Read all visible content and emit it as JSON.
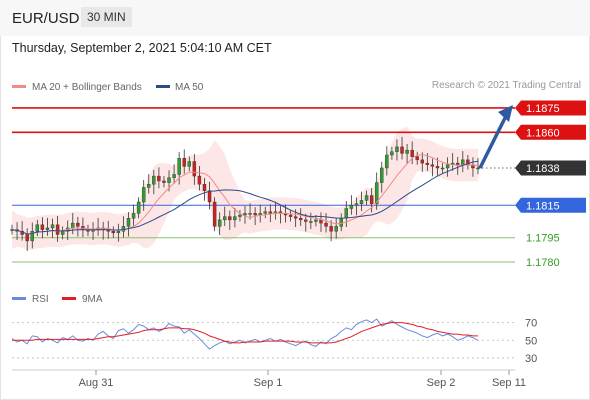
{
  "header": {
    "pair": "EUR/USD",
    "timeframe": "30 MIN"
  },
  "datetime": "Thursday, September 2, 2021 5:04:10 AM CET",
  "credit": "Research © 2021 Trading Central",
  "colors": {
    "resistance": "#dd1111",
    "support_blue": "#3366dd",
    "support_green": "#88c070",
    "last_price": "#333333",
    "ma20": "#f28a8a",
    "ma50": "#2d4a8a",
    "bands": "#fde3e3",
    "candle_up": "#2f9e2f",
    "candle_down": "#cc2222",
    "arrow": "#2d5aa0",
    "rsi": "#6a8ae0",
    "rsi_ma": "#e02020"
  },
  "chart_data": [
    {
      "type": "candlestick",
      "legend": [
        {
          "label": "MA 20 + Bollinger Bands",
          "color": "#f28a8a"
        },
        {
          "label": "MA 50",
          "color": "#2d4a8a"
        }
      ],
      "ylim": [
        1.1772,
        1.1883
      ],
      "x_ticks": [
        "Aug 31",
        "Sep 1",
        "Sep 2",
        "Sep 11"
      ],
      "levels": [
        {
          "label": "1.1875",
          "value": 1.1875,
          "kind": "resistance"
        },
        {
          "label": "1.1860",
          "value": 1.186,
          "kind": "resistance"
        },
        {
          "label": "1.1838",
          "value": 1.1838,
          "kind": "last"
        },
        {
          "label": "1.1815",
          "value": 1.1815,
          "kind": "support_blue"
        },
        {
          "label": "1.1795",
          "value": 1.1795,
          "kind": "support_green"
        },
        {
          "label": "1.1780",
          "value": 1.178,
          "kind": "support_green"
        }
      ],
      "closes": [
        1.18,
        1.1799,
        1.1797,
        1.1793,
        1.1799,
        1.1803,
        1.18,
        1.1801,
        1.1803,
        1.1797,
        1.1799,
        1.1801,
        1.1804,
        1.1802,
        1.18,
        1.1799,
        1.18,
        1.1801,
        1.18,
        1.1799,
        1.1798,
        1.1799,
        1.1802,
        1.1807,
        1.181,
        1.1817,
        1.1826,
        1.1828,
        1.1833,
        1.183,
        1.1829,
        1.1832,
        1.1834,
        1.1844,
        1.1839,
        1.1842,
        1.1833,
        1.1828,
        1.1824,
        1.1817,
        1.1802,
        1.1806,
        1.1808,
        1.1806,
        1.1808,
        1.1809,
        1.181,
        1.181,
        1.1809,
        1.181,
        1.1811,
        1.181,
        1.1811,
        1.181,
        1.1809,
        1.1808,
        1.1807,
        1.1806,
        1.1805,
        1.1805,
        1.1806,
        1.1804,
        1.1802,
        1.1799,
        1.1802,
        1.1807,
        1.1813,
        1.1815,
        1.1816,
        1.1818,
        1.1821,
        1.1816,
        1.1829,
        1.1838,
        1.1846,
        1.1848,
        1.1851,
        1.1847,
        1.1849,
        1.1845,
        1.1843,
        1.1841,
        1.184,
        1.1839,
        1.1838,
        1.1838,
        1.184,
        1.1841,
        1.184,
        1.1843,
        1.184,
        1.1838,
        1.1838
      ],
      "arrow_target": 1.1875
    },
    {
      "type": "line",
      "legend": [
        {
          "label": "RSI",
          "color": "#6a8ae0"
        },
        {
          "label": "9MA",
          "color": "#e02020"
        }
      ],
      "y_ticks": [
        "70",
        "50",
        "30"
      ],
      "ylim": [
        22,
        82
      ],
      "series": [
        {
          "name": "RSI",
          "values": [
            52,
            48,
            50,
            46,
            55,
            54,
            48,
            52,
            50,
            47,
            53,
            51,
            55,
            50,
            49,
            52,
            50,
            57,
            60,
            55,
            52,
            61,
            63,
            58,
            62,
            68,
            66,
            62,
            64,
            60,
            63,
            69,
            66,
            65,
            58,
            62,
            57,
            52,
            46,
            40,
            44,
            47,
            49,
            46,
            48,
            50,
            47,
            49,
            51,
            48,
            50,
            52,
            49,
            51,
            48,
            46,
            44,
            47,
            49,
            45,
            43,
            48,
            46,
            52,
            55,
            60,
            64,
            62,
            68,
            71,
            73,
            70,
            74,
            66,
            69,
            72,
            68,
            65,
            62,
            60,
            58,
            55,
            53,
            56,
            58,
            55,
            57,
            54,
            50,
            52,
            55,
            53,
            50
          ]
        },
        {
          "name": "9MA",
          "values": [
            50,
            50,
            50,
            50,
            50,
            51,
            51,
            51,
            51,
            51,
            51,
            51,
            51,
            51,
            51,
            51,
            51,
            52,
            53,
            54,
            54,
            55,
            56,
            57,
            58,
            59,
            61,
            62,
            62,
            62,
            63,
            64,
            64,
            64,
            63,
            63,
            62,
            60,
            58,
            55,
            53,
            51,
            49,
            48,
            47,
            47,
            48,
            48,
            48,
            48,
            49,
            49,
            49,
            49,
            49,
            49,
            48,
            48,
            48,
            47,
            47,
            47,
            47,
            47,
            48,
            50,
            52,
            54,
            57,
            60,
            62,
            64,
            66,
            68,
            69,
            70,
            70,
            70,
            69,
            68,
            66,
            65,
            63,
            62,
            60,
            59,
            58,
            57,
            57,
            56,
            56,
            55,
            55
          ]
        }
      ]
    }
  ]
}
